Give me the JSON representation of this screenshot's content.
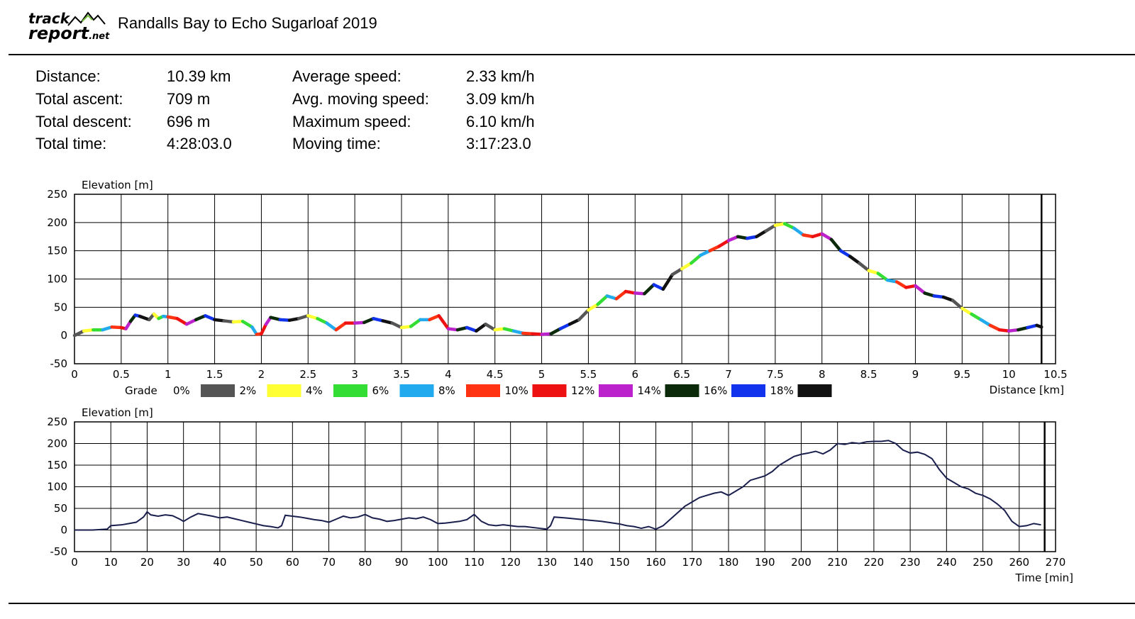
{
  "header": {
    "logo_line1": "track",
    "logo_line2": "report",
    "logo_suffix": ".net",
    "title": "Randalls Bay to Echo Sugarloaf 2019"
  },
  "stats": [
    {
      "label": "Distance:",
      "value": "10.39 km"
    },
    {
      "label": "Total ascent:",
      "value": "709 m"
    },
    {
      "label": "Total descent:",
      "value": "696 m"
    },
    {
      "label": "Total time:",
      "value": "4:28:03.0"
    },
    {
      "label": "Average speed:",
      "value": "2.33 km/h"
    },
    {
      "label": "Avg. moving speed:",
      "value": "3.09 km/h"
    },
    {
      "label": "Maximum speed:",
      "value": "6.10 km/h"
    },
    {
      "label": "Moving time:",
      "value": "3:17:23.0"
    }
  ],
  "chart_data": [
    {
      "type": "line",
      "ylabel": "Elevation [m]",
      "xlabel": "Distance [km]",
      "xlim": [
        0,
        10.5
      ],
      "ylim": [
        -50,
        250
      ],
      "x_ticks": [
        0,
        0.5,
        1,
        1.5,
        2,
        2.5,
        3,
        3.5,
        4,
        4.5,
        5,
        5.5,
        6,
        6.5,
        7,
        7.5,
        8,
        8.5,
        9,
        9.5,
        10,
        10.5
      ],
      "y_ticks": [
        -50,
        0,
        50,
        100,
        150,
        200,
        250
      ],
      "grid": true,
      "colored_by": "grade",
      "series": [
        {
          "x": [
            0,
            0.1,
            0.2,
            0.3,
            0.4,
            0.5,
            0.55,
            0.6,
            0.65,
            0.7,
            0.8,
            0.85,
            0.9,
            0.95,
            1.0,
            1.1,
            1.2,
            1.3,
            1.4,
            1.5,
            1.6,
            1.7,
            1.8,
            1.9,
            1.95,
            2.0,
            2.05,
            2.1,
            2.2,
            2.3,
            2.4,
            2.5,
            2.6,
            2.7,
            2.8,
            2.9,
            3.0,
            3.1,
            3.2,
            3.3,
            3.4,
            3.5,
            3.6,
            3.7,
            3.8,
            3.9,
            4.0,
            4.1,
            4.2,
            4.3,
            4.4,
            4.5,
            4.6,
            4.7,
            4.8,
            4.9,
            5.0,
            5.1,
            5.2,
            5.3,
            5.4,
            5.5,
            5.6,
            5.7,
            5.8,
            5.9,
            6.0,
            6.1,
            6.2,
            6.3,
            6.4,
            6.5,
            6.6,
            6.7,
            6.8,
            6.9,
            7.0,
            7.1,
            7.2,
            7.3,
            7.4,
            7.5,
            7.6,
            7.7,
            7.8,
            7.9,
            8.0,
            8.1,
            8.2,
            8.3,
            8.4,
            8.5,
            8.6,
            8.7,
            8.8,
            8.9,
            9.0,
            9.1,
            9.2,
            9.3,
            9.4,
            9.5,
            9.6,
            9.7,
            9.8,
            9.9,
            10.0,
            10.1,
            10.2,
            10.3,
            10.35
          ],
          "y": [
            0,
            8,
            10,
            10,
            15,
            14,
            12,
            25,
            36,
            34,
            28,
            38,
            30,
            34,
            33,
            30,
            20,
            28,
            35,
            28,
            26,
            24,
            25,
            15,
            2,
            3,
            20,
            32,
            28,
            27,
            30,
            35,
            30,
            22,
            10,
            22,
            22,
            23,
            30,
            26,
            22,
            14,
            16,
            28,
            28,
            35,
            12,
            10,
            14,
            8,
            20,
            10,
            12,
            8,
            4,
            3,
            2,
            3,
            12,
            20,
            28,
            45,
            55,
            70,
            65,
            78,
            75,
            74,
            90,
            82,
            108,
            118,
            128,
            142,
            150,
            158,
            168,
            175,
            172,
            175,
            185,
            195,
            198,
            190,
            178,
            175,
            180,
            170,
            150,
            140,
            128,
            115,
            110,
            98,
            95,
            85,
            88,
            75,
            70,
            68,
            62,
            48,
            38,
            28,
            18,
            10,
            8,
            10,
            14,
            18,
            15
          ]
        }
      ],
      "legend": {
        "title": "Grade",
        "entries": [
          {
            "label": "0%",
            "color": "#555555"
          },
          {
            "label": "2%",
            "color": "#ffff33"
          },
          {
            "label": "4%",
            "color": "#33dd33"
          },
          {
            "label": "6%",
            "color": "#22aaee"
          },
          {
            "label": "8%",
            "color": "#ff3311"
          },
          {
            "label": "10%",
            "color": "#ee1111"
          },
          {
            "label": "12%",
            "color": "#bb22cc"
          },
          {
            "label": "14%",
            "color": "#0a2a0a"
          },
          {
            "label": "16%",
            "color": "#1133ee"
          },
          {
            "label": "18%",
            "color": "#111111"
          }
        ],
        "placement": "bottom"
      }
    },
    {
      "type": "line",
      "ylabel": "Elevation [m]",
      "xlabel": "Time [min]",
      "xlim": [
        0,
        270
      ],
      "ylim": [
        -50,
        250
      ],
      "x_ticks": [
        0,
        10,
        20,
        30,
        40,
        50,
        60,
        70,
        80,
        90,
        100,
        110,
        120,
        130,
        140,
        150,
        160,
        170,
        180,
        190,
        200,
        210,
        220,
        230,
        240,
        250,
        260,
        270
      ],
      "y_ticks": [
        -50,
        0,
        50,
        100,
        150,
        200,
        250
      ],
      "grid": true,
      "line_color": "#1a1f4e",
      "series": [
        {
          "x": [
            0,
            5,
            9,
            10,
            13,
            15,
            17,
            19,
            20,
            21,
            23,
            25,
            27,
            29,
            30,
            32,
            34,
            36,
            38,
            40,
            42,
            44,
            46,
            48,
            50,
            52,
            54,
            56,
            57,
            58,
            60,
            62,
            64,
            66,
            68,
            70,
            72,
            74,
            76,
            78,
            80,
            82,
            84,
            86,
            88,
            90,
            92,
            94,
            96,
            98,
            100,
            102,
            104,
            106,
            108,
            110,
            112,
            114,
            116,
            118,
            120,
            122,
            124,
            126,
            128,
            130,
            131,
            132,
            135,
            140,
            145,
            150,
            152,
            154,
            156,
            158,
            160,
            162,
            164,
            166,
            168,
            170,
            172,
            174,
            176,
            178,
            180,
            182,
            184,
            186,
            188,
            190,
            192,
            194,
            196,
            198,
            200,
            202,
            204,
            206,
            208,
            210,
            212,
            214,
            216,
            218,
            220,
            222,
            224,
            226,
            228,
            230,
            232,
            234,
            236,
            238,
            240,
            242,
            244,
            246,
            248,
            250,
            252,
            254,
            256,
            258,
            260,
            262,
            264,
            266
          ],
          "y": [
            0,
            0,
            2,
            10,
            12,
            15,
            18,
            30,
            42,
            35,
            32,
            35,
            33,
            25,
            20,
            30,
            38,
            35,
            32,
            28,
            30,
            26,
            22,
            18,
            14,
            10,
            8,
            5,
            10,
            34,
            32,
            30,
            27,
            24,
            22,
            18,
            25,
            32,
            28,
            30,
            36,
            28,
            25,
            20,
            22,
            25,
            28,
            26,
            30,
            24,
            15,
            16,
            18,
            20,
            24,
            36,
            20,
            12,
            10,
            12,
            10,
            8,
            8,
            6,
            4,
            2,
            10,
            30,
            28,
            24,
            20,
            14,
            10,
            8,
            4,
            8,
            2,
            10,
            25,
            40,
            55,
            65,
            75,
            80,
            85,
            88,
            80,
            90,
            100,
            115,
            120,
            125,
            135,
            150,
            160,
            170,
            175,
            178,
            182,
            176,
            185,
            200,
            198,
            202,
            200,
            204,
            205,
            205,
            207,
            200,
            185,
            178,
            180,
            175,
            165,
            140,
            120,
            110,
            100,
            95,
            85,
            80,
            72,
            60,
            45,
            20,
            8,
            10,
            15,
            12
          ]
        }
      ]
    }
  ]
}
